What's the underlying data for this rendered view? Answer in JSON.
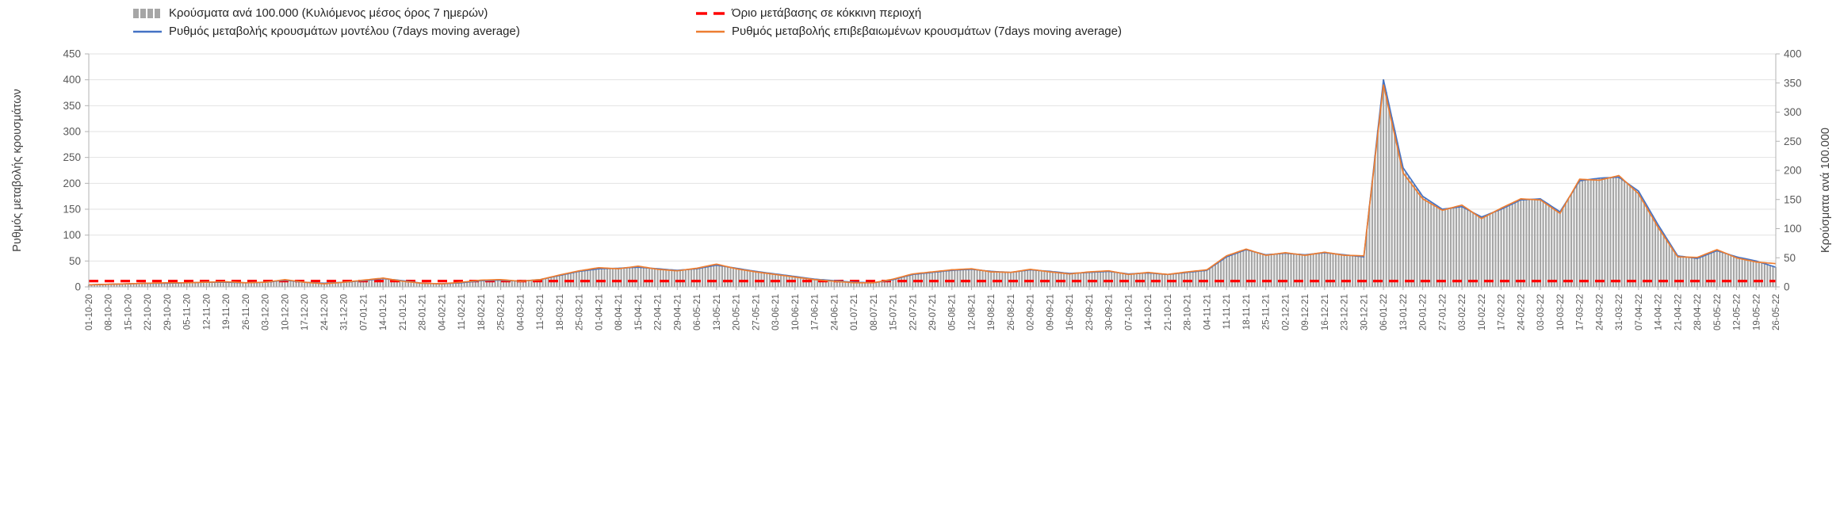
{
  "legend": [
    {
      "label": "Κρούσματα ανά 100.000 (Κυλιόμενος μέσος όρος 7 ημερών)",
      "type": "bar",
      "color": "#a6a6a6"
    },
    {
      "label": "Όριο μετάβασης σε κόκκινη περιοχή",
      "type": "dashed",
      "color": "#ff0000"
    },
    {
      "label": "Ρυθμός μεταβολής κρουσμάτων μοντέλου (7days moving average)",
      "type": "line",
      "color": "#4472c4"
    },
    {
      "label": "Ρυθμός μεταβολής επιβεβαιωμένων κρουσμάτων (7days moving average)",
      "type": "line",
      "color": "#ed7d31"
    }
  ],
  "chart_data": {
    "type": "bar+line",
    "title": "",
    "grid": true,
    "legend_position": "top",
    "left_axis": {
      "label": "Ρυθμός μεταβολής κρουσμάτων",
      "min": 0,
      "max": 450,
      "step": 50
    },
    "right_axis": {
      "label": "Κρούσματα ανά 100.000",
      "min": 0,
      "max": 400,
      "step": 50
    },
    "threshold": {
      "name": "Όριο μετάβασης σε κόκκινη περιοχή",
      "axis": "right",
      "value": 10,
      "color": "#ff0000",
      "style": "dashed"
    },
    "x_labels": [
      "01-10-20",
      "08-10-20",
      "15-10-20",
      "22-10-20",
      "29-10-20",
      "05-11-20",
      "12-11-20",
      "19-11-20",
      "26-11-20",
      "03-12-20",
      "10-12-20",
      "17-12-20",
      "24-12-20",
      "31-12-20",
      "07-01-21",
      "14-01-21",
      "21-01-21",
      "28-01-21",
      "04-02-21",
      "11-02-21",
      "18-02-21",
      "25-02-21",
      "04-03-21",
      "11-03-21",
      "18-03-21",
      "25-03-21",
      "01-04-21",
      "08-04-21",
      "15-04-21",
      "22-04-21",
      "29-04-21",
      "06-05-21",
      "13-05-21",
      "20-05-21",
      "27-05-21",
      "03-06-21",
      "10-06-21",
      "17-06-21",
      "24-06-21",
      "01-07-21",
      "08-07-21",
      "15-07-21",
      "22-07-21",
      "29-07-21",
      "05-08-21",
      "12-08-21",
      "19-08-21",
      "26-08-21",
      "02-09-21",
      "09-09-21",
      "16-09-21",
      "23-09-21",
      "30-09-21",
      "07-10-21",
      "14-10-21",
      "21-10-21",
      "28-10-21",
      "04-11-21",
      "11-11-21",
      "18-11-21",
      "25-11-21",
      "02-12-21",
      "09-12-21",
      "16-12-21",
      "23-12-21",
      "30-12-21",
      "06-01-22",
      "13-01-22",
      "20-01-22",
      "27-01-22",
      "03-02-22",
      "10-02-22",
      "17-02-22",
      "24-02-22",
      "03-03-22",
      "10-03-22",
      "17-03-22",
      "24-03-22",
      "31-03-22",
      "07-04-22",
      "14-04-22",
      "21-04-22",
      "28-04-22",
      "05-05-22",
      "12-05-22",
      "19-05-22",
      "26-05-22"
    ],
    "series": [
      {
        "name": "cases-per-100k",
        "kind": "bar",
        "axis": "right",
        "color": "#a6a6a6",
        "values": [
          4,
          4,
          5,
          6,
          6,
          7,
          8,
          8,
          7,
          8,
          12,
          8,
          6,
          8,
          11,
          14,
          11,
          6,
          5,
          7,
          11,
          12,
          10,
          12,
          20,
          27,
          31,
          32,
          34,
          31,
          28,
          31,
          37,
          32,
          27,
          22,
          18,
          13,
          11,
          8,
          7,
          12,
          21,
          25,
          28,
          30,
          27,
          25,
          29,
          27,
          23,
          25,
          27,
          22,
          24,
          21,
          25,
          28,
          52,
          64,
          55,
          58,
          55,
          59,
          55,
          52,
          356,
          204,
          156,
          133,
          138,
          120,
          133,
          149,
          151,
          129,
          182,
          187,
          188,
          164,
          107,
          53,
          49,
          62,
          52,
          44,
          34
        ]
      },
      {
        "name": "model-rate",
        "kind": "line",
        "axis": "left",
        "color": "#4472c4",
        "values": [
          4,
          5,
          6,
          7,
          7,
          8,
          9,
          9,
          8,
          9,
          13,
          9,
          7,
          9,
          12,
          16,
          12,
          7,
          6,
          8,
          12,
          13,
          11,
          14,
          22,
          30,
          35,
          36,
          38,
          35,
          32,
          35,
          42,
          36,
          30,
          25,
          20,
          15,
          12,
          9,
          8,
          14,
          24,
          28,
          32,
          34,
          30,
          28,
          33,
          30,
          26,
          28,
          30,
          25,
          27,
          24,
          28,
          32,
          58,
          72,
          62,
          65,
          62,
          66,
          62,
          58,
          400,
          230,
          175,
          150,
          155,
          135,
          150,
          168,
          170,
          145,
          205,
          210,
          212,
          185,
          120,
          60,
          55,
          70,
          58,
          50,
          38
        ]
      },
      {
        "name": "confirmed-rate",
        "kind": "line",
        "axis": "left",
        "color": "#ed7d31",
        "values": [
          4,
          5,
          6,
          7,
          8,
          8,
          9,
          10,
          8,
          9,
          14,
          9,
          6,
          9,
          13,
          17,
          11,
          7,
          6,
          9,
          13,
          14,
          11,
          14,
          23,
          31,
          37,
          35,
          40,
          34,
          31,
          36,
          44,
          35,
          29,
          24,
          19,
          14,
          11,
          8,
          8,
          15,
          25,
          29,
          33,
          35,
          29,
          28,
          34,
          29,
          25,
          29,
          31,
          24,
          28,
          24,
          29,
          33,
          60,
          73,
          61,
          66,
          61,
          67,
          61,
          60,
          390,
          220,
          170,
          148,
          158,
          132,
          152,
          170,
          168,
          142,
          208,
          206,
          215,
          180,
          115,
          58,
          57,
          72,
          56,
          48,
          45
        ]
      }
    ]
  }
}
